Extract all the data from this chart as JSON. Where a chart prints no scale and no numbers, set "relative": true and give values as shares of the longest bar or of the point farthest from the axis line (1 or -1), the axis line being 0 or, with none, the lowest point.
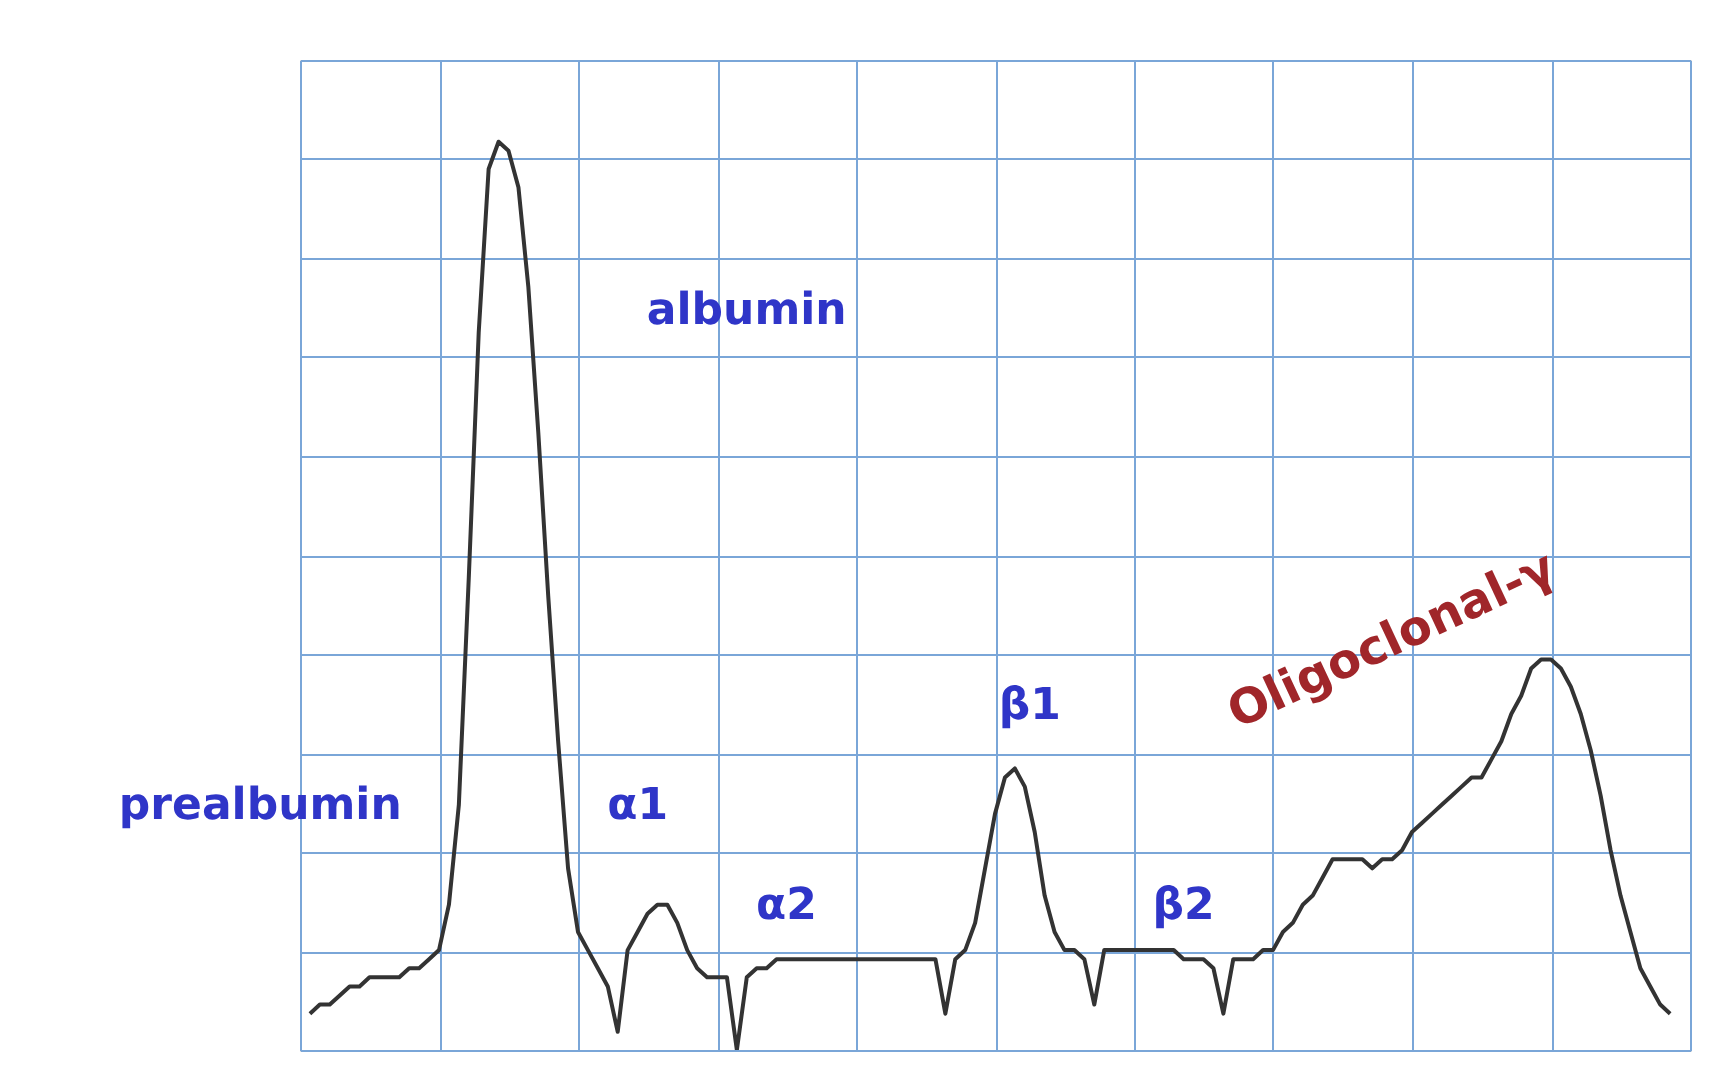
{
  "chart_data": {
    "type": "line",
    "relative": true,
    "grid": true,
    "color": "#333333",
    "line_style": "solid",
    "categories": [
      null,
      null,
      null,
      null,
      null,
      null,
      null,
      null,
      null,
      null,
      null,
      null,
      null,
      null,
      null,
      null,
      null,
      null,
      null,
      null,
      null,
      null,
      null,
      null,
      null,
      null,
      null,
      null,
      null,
      null,
      null,
      null,
      null,
      null,
      null,
      null,
      null,
      null,
      null,
      null,
      null,
      null,
      null,
      null,
      null,
      null,
      null,
      null,
      null,
      null,
      null,
      null,
      null,
      null,
      null,
      null,
      null,
      null,
      null,
      null,
      null,
      null,
      null,
      null,
      null,
      null,
      null,
      null,
      null,
      null,
      null,
      null,
      null,
      null,
      null,
      null,
      null,
      null,
      null,
      null,
      null,
      null,
      null,
      null,
      null,
      null,
      null,
      null,
      null,
      null,
      null,
      null,
      null,
      null,
      null,
      null,
      null,
      null,
      null,
      null,
      null,
      null,
      null,
      null,
      null,
      null,
      null,
      null,
      null,
      null,
      null,
      null,
      null,
      null,
      null,
      null,
      null,
      null,
      null,
      null,
      null,
      null,
      null,
      null,
      null,
      null,
      null,
      null,
      null,
      null,
      null,
      null,
      null,
      null,
      null,
      null,
      null,
      null
    ],
    "values": [
      0.04,
      0.05,
      0.05,
      0.06,
      0.07,
      0.07,
      0.08,
      0.08,
      0.08,
      0.08,
      0.09,
      0.09,
      0.1,
      0.11,
      0.16,
      0.27,
      0.52,
      0.79,
      0.97,
      1.0,
      0.99,
      0.95,
      0.84,
      0.68,
      0.5,
      0.34,
      0.2,
      0.13,
      0.11,
      0.09,
      0.07,
      0.02,
      0.11,
      0.13,
      0.15,
      0.16,
      0.16,
      0.14,
      0.11,
      0.09,
      0.08,
      0.08,
      0.08,
      0.0,
      0.08,
      0.09,
      0.09,
      0.1,
      0.1,
      0.1,
      0.1,
      0.1,
      0.1,
      0.1,
      0.1,
      0.1,
      0.1,
      0.1,
      0.1,
      0.1,
      0.1,
      0.1,
      0.1,
      0.1,
      0.04,
      0.1,
      0.11,
      0.14,
      0.2,
      0.26,
      0.3,
      0.31,
      0.29,
      0.24,
      0.17,
      0.13,
      0.11,
      0.11,
      0.1,
      0.05,
      0.11,
      0.11,
      0.11,
      0.11,
      0.11,
      0.11,
      0.11,
      0.11,
      0.1,
      0.1,
      0.1,
      0.09,
      0.04,
      0.1,
      0.1,
      0.1,
      0.11,
      0.11,
      0.13,
      0.14,
      0.16,
      0.17,
      0.19,
      0.21,
      0.21,
      0.21,
      0.21,
      0.2,
      0.21,
      0.21,
      0.22,
      0.24,
      0.25,
      0.26,
      0.27,
      0.28,
      0.29,
      0.3,
      0.3,
      0.32,
      0.34,
      0.37,
      0.39,
      0.42,
      0.43,
      0.43,
      0.42,
      0.4,
      0.37,
      0.33,
      0.28,
      0.22,
      0.17,
      0.13,
      0.09,
      0.07,
      0.05,
      0.04
    ],
    "annotations": [
      "prealbumin",
      "albumin",
      "α1",
      "α2",
      "β1",
      "β2",
      "Oligoclonal-γ"
    ]
  }
}
